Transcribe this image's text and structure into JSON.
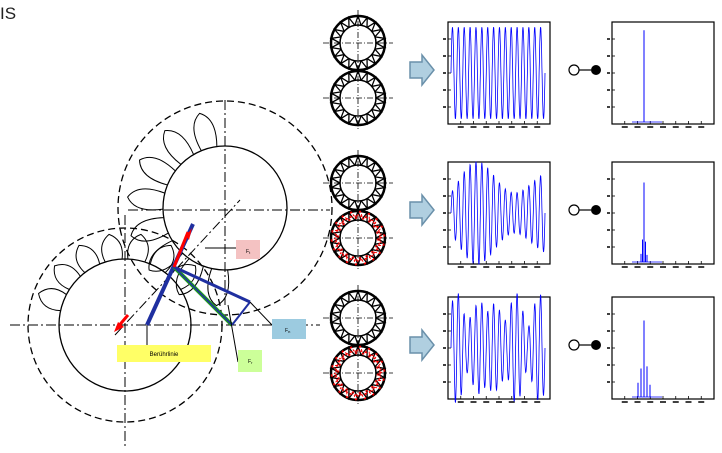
{
  "corner_text": "IS",
  "gear_diagram": {
    "line_of_contact_label": "Berührlinie",
    "force_labels": {
      "tangential": "F",
      "radial": "F",
      "normal": "F"
    },
    "force_subscripts": {
      "tangential": "t",
      "radial": "n",
      "normal": "r"
    },
    "colors": {
      "label_tangential": "#f4c2c2",
      "label_radial": "#9ccbe0",
      "label_normal": "#ccff99",
      "label_contact": "#ffff66",
      "force_tangential": "#ff0000",
      "force_normal": "#1f2fa0",
      "force_radial": "#1f9a1f"
    }
  },
  "cases": [
    {
      "id": "case-1",
      "damaged_gear": false,
      "time_signal": {
        "color": "#0000ff",
        "pattern": "constant amplitude, 16 cycles"
      },
      "spectrum": {
        "color": "#0000ff",
        "pattern": "single line"
      }
    },
    {
      "id": "case-2",
      "damaged_gear": true,
      "time_signal": {
        "color": "#0000ff",
        "pattern": "slow amplitude modulation"
      },
      "spectrum": {
        "color": "#0000ff",
        "pattern": "main line with close sidebands"
      }
    },
    {
      "id": "case-3",
      "damaged_gear": true,
      "time_signal": {
        "color": "#0000ff",
        "pattern": "irregular amplitude modulation"
      },
      "spectrum": {
        "color": "#0000ff",
        "pattern": "main line with spread sidebands"
      }
    }
  ],
  "damage_color": "#ff0000"
}
